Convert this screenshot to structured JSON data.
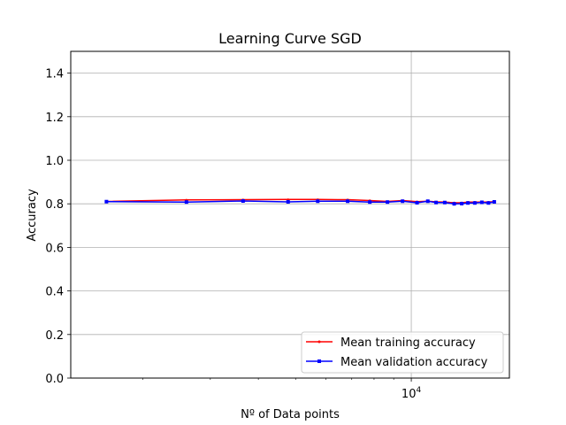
{
  "chart_data": {
    "type": "line",
    "title": "Learning Curve SGD",
    "xlabel": "Nº of Data points",
    "ylabel": "Accuracy",
    "xscale": "log",
    "xlim": [
      1300,
      18000
    ],
    "ylim": [
      0.0,
      1.5
    ],
    "yticks": [
      0.0,
      0.2,
      0.4,
      0.6,
      0.8,
      1.0,
      1.2,
      1.4
    ],
    "ytick_labels": [
      "0.0",
      "0.2",
      "0.4",
      "0.6",
      "0.8",
      "1.0",
      "1.2",
      "1.4"
    ],
    "xtick_major": [
      10000
    ],
    "xtick_major_label_base": "10",
    "xtick_major_label_exp": "4",
    "grid": true,
    "legend_position": "lower-right",
    "x": [
      1610,
      2600,
      3650,
      4780,
      5710,
      6830,
      7800,
      8670,
      9490,
      10350,
      11040,
      11600,
      12220,
      12930,
      13530,
      14040,
      14630,
      15260,
      15880,
      16440
    ],
    "series": [
      {
        "name": "Mean training accuracy",
        "color": "#ff0000",
        "marker": "point",
        "values": [
          0.811,
          0.818,
          0.819,
          0.82,
          0.82,
          0.819,
          0.815,
          0.811,
          0.815,
          0.81,
          0.812,
          0.809,
          0.808,
          0.805,
          0.805,
          0.808,
          0.808,
          0.808,
          0.808,
          0.81
        ]
      },
      {
        "name": "Mean validation accuracy",
        "color": "#0000ff",
        "marker": "square",
        "values": [
          0.81,
          0.808,
          0.813,
          0.809,
          0.812,
          0.812,
          0.808,
          0.808,
          0.812,
          0.805,
          0.812,
          0.806,
          0.806,
          0.8,
          0.801,
          0.804,
          0.804,
          0.807,
          0.804,
          0.809
        ]
      }
    ]
  }
}
